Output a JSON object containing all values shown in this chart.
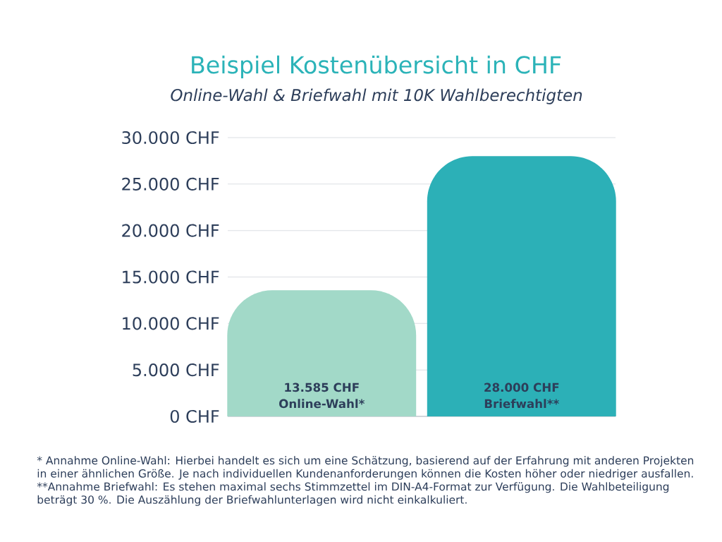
{
  "chart_data": {
    "type": "bar",
    "title": "Beispiel Kostenübersicht in CHF",
    "subtitle": "Online-Wahl & Briefwahl mit 10K Wahlberechtigten",
    "categories": [
      "Online-Wahl*",
      "Briefwahl**"
    ],
    "values": [
      13585,
      28000
    ],
    "colors": [
      "#a2d9c8",
      "#2cb0b7"
    ],
    "value_labels": [
      "13.585 CHF",
      "28.000 CHF"
    ],
    "ylim": [
      0,
      30000
    ],
    "yticks": [
      {
        "value": 0,
        "label": "0 CHF"
      },
      {
        "value": 5000,
        "label": "5.000 CHF"
      },
      {
        "value": 10000,
        "label": "10.000 CHF"
      },
      {
        "value": 15000,
        "label": "15.000 CHF"
      },
      {
        "value": 20000,
        "label": "20.000 CHF"
      },
      {
        "value": 25000,
        "label": "25.000 CHF"
      },
      {
        "value": 30000,
        "label": "30.000 CHF"
      }
    ],
    "grid": "y",
    "annotations": [
      "* Annahme Online-Wahl: Hierbei handelt es sich um eine Schätzung, basierend auf der Erfahrung mit anderen Projekten in einer ähnlichen Größe. Je nach individuellen Kundenanforderungen können die Kosten höher oder niedriger ausfallen.",
      "**Annahme Briefwahl: Es stehen maximal sechs Stimmzettel im DIN-A4-Format zur Verfügung. Die Wahlbeteiligung beträgt 30 %. Die Auszählung der Briefwahlunterlagen wird nicht einkalkuliert."
    ]
  }
}
